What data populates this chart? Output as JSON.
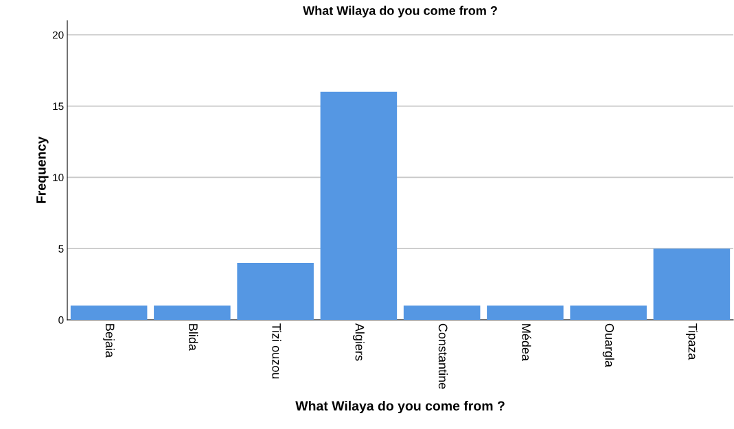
{
  "chart_data": {
    "type": "bar",
    "title": "What Wilaya do you come from ?",
    "xlabel": "What Wilaya do you come from ?",
    "ylabel": "Frequency",
    "categories": [
      "Bejaia",
      "Blida",
      "Tizi ouzou",
      "Algiers",
      "Constantine",
      "Médea",
      "Ouargla",
      "Tipaza"
    ],
    "values": [
      1,
      1,
      4,
      16,
      1,
      1,
      1,
      5
    ],
    "color": "#5597e3",
    "ylim": [
      0,
      21
    ],
    "yticks": [
      0,
      5,
      10,
      15,
      20
    ],
    "grid": "y"
  }
}
